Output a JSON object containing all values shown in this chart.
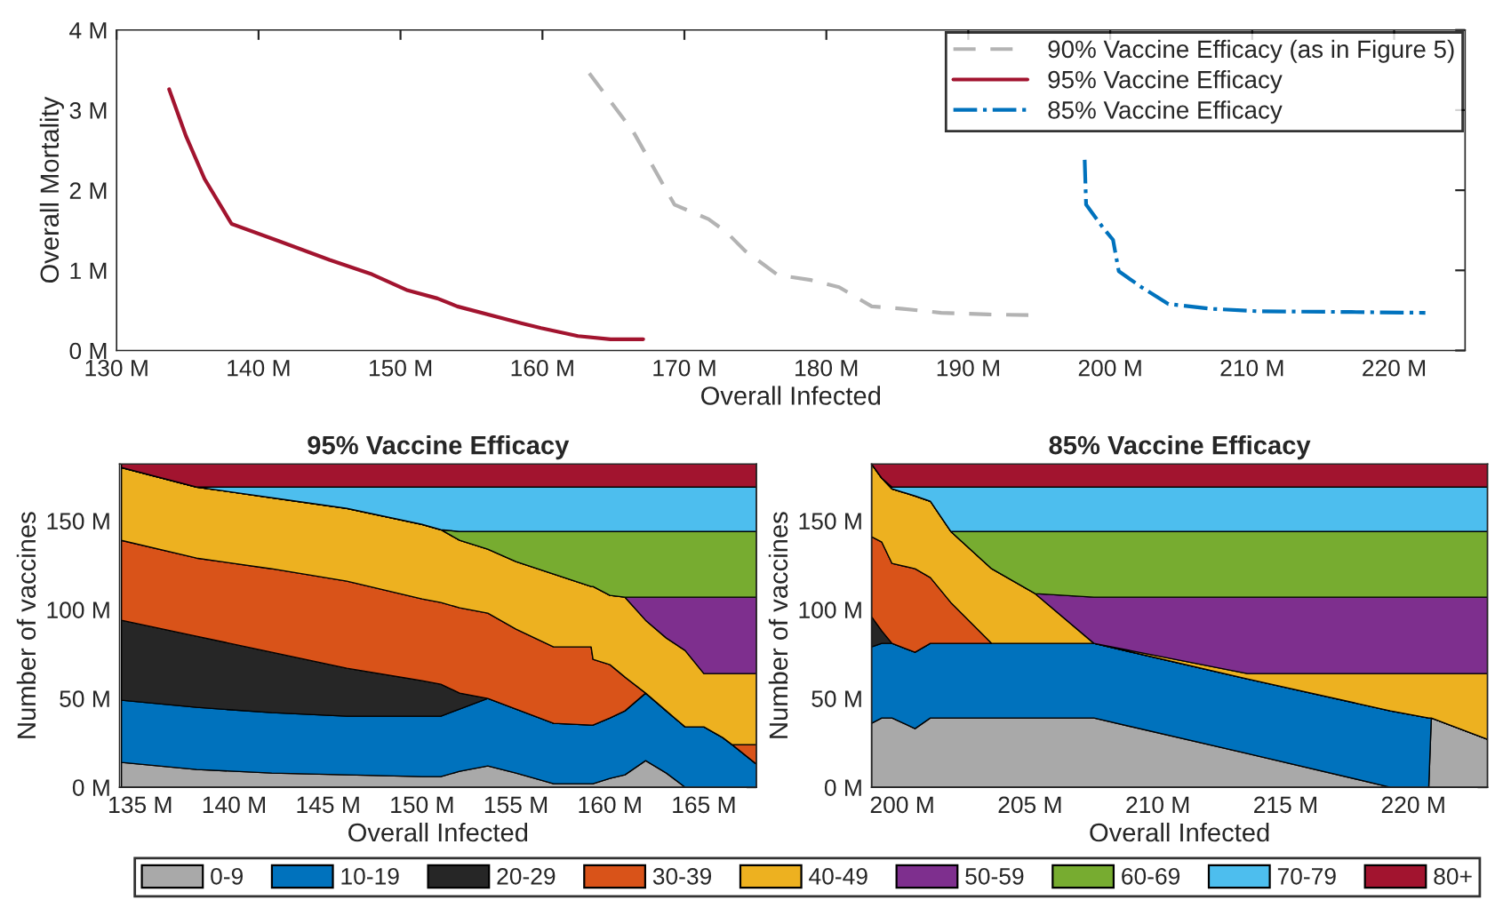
{
  "chart_data": [
    {
      "type": "line",
      "xlabel": "Overall Infected",
      "ylabel": "Overall Mortality",
      "xlim": [
        130,
        225
      ],
      "xticks": [
        {
          "value": 130,
          "label": "130 M"
        },
        {
          "value": 140,
          "label": "140 M"
        },
        {
          "value": 150,
          "label": "150 M"
        },
        {
          "value": 160,
          "label": "160 M"
        },
        {
          "value": 170,
          "label": "170 M"
        },
        {
          "value": 180,
          "label": "180 M"
        },
        {
          "value": 190,
          "label": "190 M"
        },
        {
          "value": 200,
          "label": "200 M"
        },
        {
          "value": 210,
          "label": "210 M"
        },
        {
          "value": 220,
          "label": "220 M"
        }
      ],
      "ylim": [
        0,
        4
      ],
      "yticks": [
        {
          "value": 0,
          "label": "0 M"
        },
        {
          "value": 1,
          "label": "1 M"
        },
        {
          "value": 2,
          "label": "2 M"
        },
        {
          "value": 3,
          "label": "3 M"
        },
        {
          "value": 4,
          "label": "4 M"
        }
      ],
      "grid": false,
      "legend": "top right",
      "marker": "none",
      "series": [
        {
          "name": "90% Vaccine Efficacy (as in Figure 5)",
          "color": "#b3b3b3",
          "line_style": "dashed",
          "x": [
            163.3,
            166.4,
            169.3,
            171.7,
            173.0,
            174.3,
            176.6,
            178.9,
            180.9,
            183.2,
            185.4,
            188.1,
            191.4,
            194.6
          ],
          "values": [
            3.46,
            2.73,
            1.82,
            1.64,
            1.47,
            1.24,
            0.94,
            0.88,
            0.79,
            0.55,
            0.52,
            0.47,
            0.45,
            0.44
          ]
        },
        {
          "name": "95% Vaccine Efficacy",
          "color": "#a2142f",
          "line_style": "solid",
          "x": [
            133.7,
            134.9,
            136.2,
            138.1,
            141.5,
            145.0,
            148.0,
            150.5,
            152.6,
            154.0,
            158.5,
            159.9,
            162.5,
            164.8,
            167.1
          ],
          "values": [
            3.26,
            2.67,
            2.14,
            1.58,
            1.36,
            1.13,
            0.95,
            0.75,
            0.65,
            0.55,
            0.34,
            0.28,
            0.18,
            0.14,
            0.14
          ]
        },
        {
          "name": "85% Vaccine Efficacy",
          "color": "#0072bd",
          "line_style": "dashdot",
          "x": [
            198.2,
            198.3,
            199.5,
            200.2,
            200.6,
            202.2,
            204.1,
            207.1,
            210.4,
            217.0,
            222.2
          ],
          "values": [
            2.38,
            1.82,
            1.53,
            1.38,
            0.99,
            0.79,
            0.58,
            0.52,
            0.49,
            0.48,
            0.47
          ]
        }
      ]
    },
    {
      "type": "area",
      "stacked": true,
      "title": "95% Vaccine Efficacy",
      "xlabel": "Overall Infected",
      "ylabel": "Number of vaccines",
      "xlim": [
        133.9,
        167.8
      ],
      "xticks": [
        {
          "value": 135,
          "label": "135 M"
        },
        {
          "value": 140,
          "label": "140 M"
        },
        {
          "value": 145,
          "label": "145 M"
        },
        {
          "value": 150,
          "label": "150 M"
        },
        {
          "value": 155,
          "label": "155 M"
        },
        {
          "value": 160,
          "label": "160 M"
        },
        {
          "value": 165,
          "label": "165 M"
        }
      ],
      "ylim": [
        0,
        182
      ],
      "yticks": [
        {
          "value": 0,
          "label": "0 M"
        },
        {
          "value": 50,
          "label": "50 M"
        },
        {
          "value": 100,
          "label": "100 M"
        },
        {
          "value": 150,
          "label": "150 M"
        }
      ],
      "grid": false,
      "legend": "bottom",
      "x": [
        134,
        138,
        142,
        146,
        150,
        151,
        152,
        153.5,
        155,
        157,
        159,
        159.1,
        160,
        160.8,
        161.9,
        163,
        164,
        165,
        166,
        166.5,
        167.8
      ],
      "series": [
        {
          "name": "0-9",
          "color": "#a9a9a9",
          "values": [
            14,
            10,
            8,
            7,
            6,
            6,
            9,
            12,
            8,
            2,
            2,
            2,
            5,
            7,
            15,
            8,
            0,
            0,
            0,
            0,
            0
          ]
        },
        {
          "name": "10-19",
          "color": "#0072bd",
          "values": [
            35,
            35,
            34,
            33,
            34,
            34,
            35,
            38,
            36,
            34,
            33,
            33,
            34,
            36,
            38,
            35,
            34,
            34,
            28,
            24,
            13
          ]
        },
        {
          "name": "20-29",
          "color": "#262626",
          "values": [
            45,
            40,
            34,
            27,
            20,
            18,
            9,
            0,
            0,
            0,
            0,
            0,
            0,
            0,
            0,
            0,
            0,
            0,
            0,
            0,
            0
          ]
        },
        {
          "name": "30-39",
          "color": "#d95319",
          "values": [
            45,
            44,
            47,
            49,
            46,
            46,
            48,
            48,
            45,
            43,
            44,
            37,
            30,
            19,
            0,
            0,
            0,
            0,
            0,
            0,
            11
          ]
        },
        {
          "name": "40-49",
          "color": "#edb120",
          "values": [
            41,
            40,
            40,
            41,
            42,
            41,
            38,
            36,
            38,
            41,
            34,
            41,
            39,
            45,
            41,
            41,
            43,
            30,
            36,
            40,
            40
          ]
        },
        {
          "name": "50-59",
          "color": "#7e2f8e",
          "values": [
            0,
            0,
            0,
            0,
            0,
            0,
            0,
            0,
            0,
            0,
            0,
            0,
            0,
            0,
            13,
            23,
            30,
            43,
            43,
            43,
            43
          ]
        },
        {
          "name": "60-69",
          "color": "#77ac30",
          "values": [
            0,
            0,
            0,
            0,
            0,
            0,
            5,
            10,
            17,
            24,
            31,
            31,
            36,
            37,
            37,
            37,
            37,
            37,
            37,
            37,
            37
          ]
        },
        {
          "name": "70-79",
          "color": "#4dbeee",
          "values": [
            0,
            0,
            6,
            12,
            21,
            24,
            25,
            25,
            25,
            25,
            25,
            25,
            25,
            25,
            25,
            25,
            25,
            25,
            25,
            25,
            25
          ]
        },
        {
          "name": "80+",
          "color": "#a2142f",
          "values": [
            2,
            13,
            13,
            13,
            13,
            13,
            13,
            13,
            13,
            13,
            13,
            13,
            13,
            13,
            13,
            13,
            13,
            13,
            13,
            13,
            13
          ]
        }
      ]
    },
    {
      "type": "area",
      "stacked": true,
      "title": "85% Vaccine Efficacy",
      "xlabel": "Overall Infected",
      "ylabel": "Number of vaccines",
      "xlim": [
        198.8,
        222.9
      ],
      "xticks": [
        {
          "value": 200,
          "label": "200 M"
        },
        {
          "value": 205,
          "label": "205 M"
        },
        {
          "value": 210,
          "label": "210 M"
        },
        {
          "value": 215,
          "label": "215 M"
        },
        {
          "value": 220,
          "label": "220 M"
        }
      ],
      "ylim": [
        0,
        182
      ],
      "yticks": [
        {
          "value": 0,
          "label": "0 M"
        },
        {
          "value": 50,
          "label": "50 M"
        },
        {
          "value": 100,
          "label": "100 M"
        },
        {
          "value": 150,
          "label": "150 M"
        }
      ],
      "grid": false,
      "x": [
        198.8,
        199.2,
        199.6,
        200.5,
        201.1,
        201.9,
        203.5,
        205.2,
        207.5,
        213.5,
        219.1,
        220.6,
        220.7,
        222.9
      ],
      "series": [
        {
          "color": "#a9a9a9",
          "values": [
            36,
            39,
            39,
            33,
            39,
            39,
            39,
            39,
            39,
            19,
            0,
            0,
            39,
            27
          ]
        },
        {
          "color": "#0072bd",
          "values": [
            43,
            42,
            42,
            43,
            42,
            42,
            42,
            42,
            42,
            42,
            43,
            39,
            0,
            0
          ]
        },
        {
          "color": "#262626",
          "values": [
            17,
            7,
            0,
            0,
            0,
            0,
            0,
            0,
            0,
            0,
            0,
            0,
            0,
            0
          ]
        },
        {
          "color": "#d95319",
          "values": [
            45,
            50,
            45,
            47,
            37,
            23,
            0,
            0,
            0,
            0,
            0,
            0,
            0,
            0
          ]
        },
        {
          "color": "#edb120",
          "values": [
            41,
            36,
            42,
            41,
            43,
            40,
            42,
            28,
            0,
            3,
            21,
            25,
            25,
            37
          ]
        },
        {
          "color": "#7e2f8e",
          "values": [
            0,
            0,
            0,
            0,
            0,
            0,
            0,
            0,
            26,
            43,
            43,
            43,
            43,
            43
          ]
        },
        {
          "color": "#77ac30",
          "values": [
            0,
            0,
            0,
            0,
            0,
            0,
            21,
            35,
            37,
            37,
            37,
            37,
            37,
            37
          ]
        },
        {
          "color": "#4dbeee",
          "values": [
            0,
            0,
            1,
            5,
            8,
            25,
            25,
            25,
            25,
            25,
            25,
            25,
            25,
            25
          ]
        },
        {
          "color": "#a2142f",
          "values": [
            0,
            8,
            13,
            13,
            13,
            13,
            13,
            13,
            13,
            13,
            13,
            13,
            13,
            13
          ]
        }
      ]
    }
  ]
}
